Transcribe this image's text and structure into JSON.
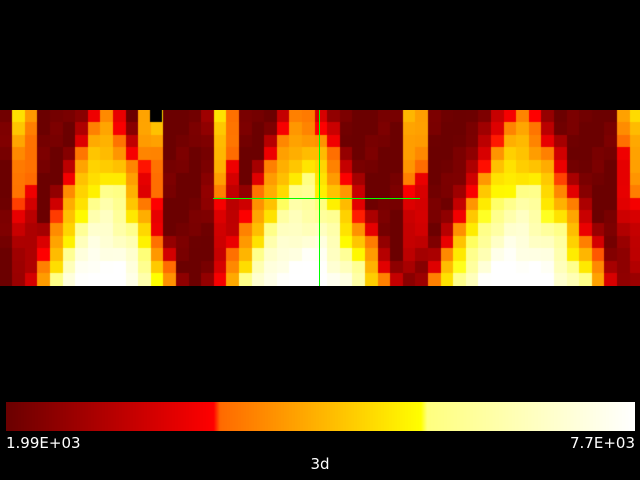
{
  "viewer": {
    "view_label": "3d",
    "colorbar": {
      "min_label": "1.99E+03",
      "max_label": "7.7E+03",
      "min": 1990,
      "max": 7700,
      "colors": [
        "#6b0000",
        "#ff0000",
        "#ff6a00",
        "#ffff00",
        "#ffff7f",
        "#ffffff"
      ],
      "stops": [
        0,
        0.33,
        0.34,
        0.66,
        0.67,
        1
      ]
    },
    "crosshair_color": "#00ff00"
  }
}
